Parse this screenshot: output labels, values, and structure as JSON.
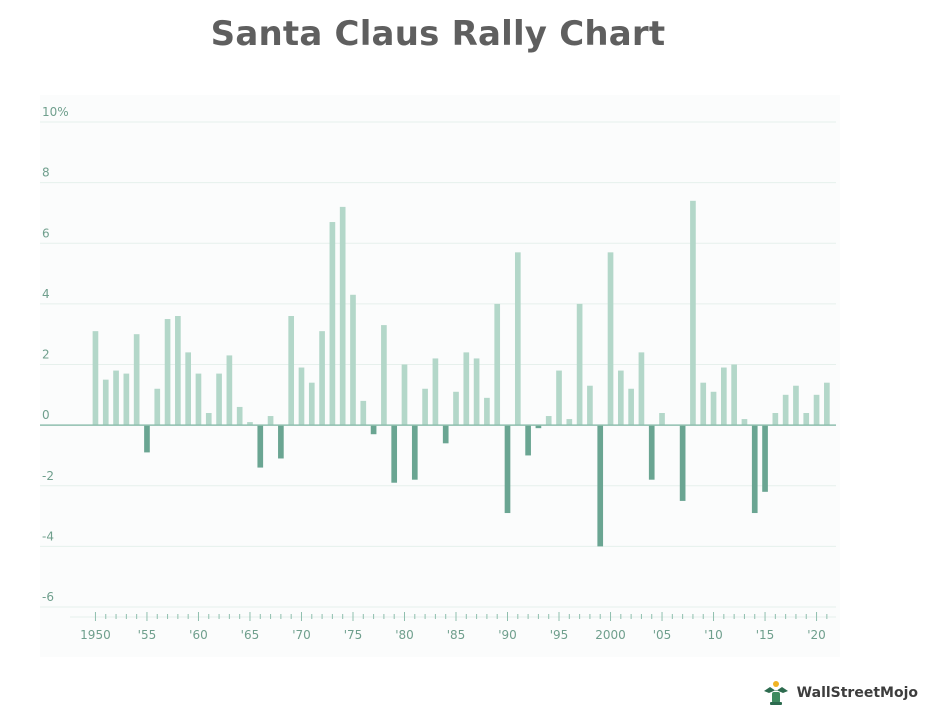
{
  "chart_data": {
    "type": "bar",
    "title": "Santa Claus Rally Chart",
    "xlabel": "",
    "ylabel": "",
    "ylim": [
      -6,
      10
    ],
    "y_ticks": [
      {
        "value": 10,
        "label": "10%"
      },
      {
        "value": 8,
        "label": "8"
      },
      {
        "value": 6,
        "label": "6"
      },
      {
        "value": 4,
        "label": "4"
      },
      {
        "value": 2,
        "label": "2"
      },
      {
        "value": 0,
        "label": "0"
      },
      {
        "value": -2,
        "label": "-2"
      },
      {
        "value": -4,
        "label": "-4"
      },
      {
        "value": -6,
        "label": "-6"
      }
    ],
    "x_tick_labels": [
      {
        "year": 1950,
        "label": "1950"
      },
      {
        "year": 1955,
        "label": "'55"
      },
      {
        "year": 1960,
        "label": "'60"
      },
      {
        "year": 1965,
        "label": "'65"
      },
      {
        "year": 1970,
        "label": "'70"
      },
      {
        "year": 1975,
        "label": "'75"
      },
      {
        "year": 1980,
        "label": "'80"
      },
      {
        "year": 1985,
        "label": "'85"
      },
      {
        "year": 1990,
        "label": "'90"
      },
      {
        "year": 1995,
        "label": "'95"
      },
      {
        "year": 2000,
        "label": "2000"
      },
      {
        "year": 2005,
        "label": "'05"
      },
      {
        "year": 2010,
        "label": "'10"
      },
      {
        "year": 2015,
        "label": "'15"
      },
      {
        "year": 2020,
        "label": "'20"
      }
    ],
    "x_range": [
      1949,
      2021
    ],
    "years": [
      1950,
      1951,
      1952,
      1953,
      1954,
      1955,
      1956,
      1957,
      1958,
      1959,
      1960,
      1961,
      1962,
      1963,
      1964,
      1965,
      1966,
      1967,
      1968,
      1969,
      1970,
      1971,
      1972,
      1973,
      1974,
      1975,
      1976,
      1977,
      1978,
      1979,
      1980,
      1981,
      1982,
      1983,
      1984,
      1985,
      1986,
      1987,
      1988,
      1989,
      1990,
      1991,
      1992,
      1993,
      1994,
      1995,
      1996,
      1997,
      1998,
      1999,
      2000,
      2001,
      2002,
      2003,
      2004,
      2005,
      2006,
      2007,
      2008,
      2009,
      2010,
      2011,
      2012,
      2013,
      2014,
      2015,
      2016,
      2017,
      2018,
      2019,
      2020
    ],
    "values": [
      3.1,
      1.5,
      1.8,
      1.7,
      3.0,
      -0.9,
      1.2,
      3.5,
      3.6,
      2.4,
      1.7,
      0.4,
      1.7,
      2.3,
      0.6,
      0.1,
      -1.4,
      0.3,
      -1.1,
      3.6,
      1.9,
      1.4,
      3.1,
      6.7,
      7.2,
      4.3,
      0.8,
      -0.3,
      3.3,
      -1.9,
      2.0,
      -1.8,
      1.2,
      2.2,
      -0.6,
      1.1,
      2.4,
      2.2,
      0.9,
      4.0,
      -2.9,
      5.7,
      -1.0,
      -0.1,
      0.3,
      1.8,
      0.2,
      4.0,
      1.3,
      -4.0,
      5.7,
      1.8,
      1.2,
      2.4,
      -1.8,
      0.4,
      0.0,
      -2.5,
      7.4,
      1.4,
      1.1,
      1.9,
      2.0,
      0.2,
      -2.9,
      -2.2,
      0.4,
      1.0,
      1.3,
      0.4,
      1.0
    ],
    "extra_values": [
      {
        "year": 2021,
        "value": 1.4
      }
    ],
    "colors": {
      "positive": "#b3d7c9",
      "negative": "#6aa592",
      "grid": "#e6f0ec",
      "zero_line": "#8fbfae",
      "tick_text": "#6f9f8d"
    }
  },
  "brand": {
    "logo_text": "WallStreetMojo"
  }
}
